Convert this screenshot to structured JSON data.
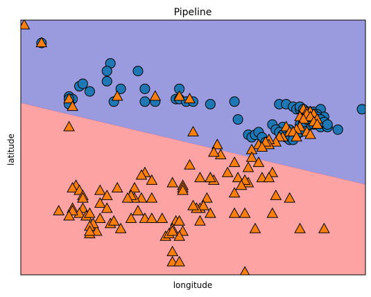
{
  "chart_data": {
    "type": "scatter",
    "title": "Pipeline",
    "xlabel": "longitude",
    "ylabel": "latitude",
    "xlim": [
      0,
      100
    ],
    "ylim": [
      0,
      100
    ],
    "ticks": "none",
    "grid": false,
    "colors": {
      "region_upper": "#9a9ade",
      "region_lower": "#fda3a3",
      "class_circle": "#1f77b4",
      "class_triangle": "#ff7f0e",
      "marker_edge": "#000000"
    },
    "decision_boundary": {
      "points": [
        [
          0,
          67.5
        ],
        [
          100,
          35.5
        ]
      ]
    },
    "series": [
      {
        "marker": "circle",
        "points": [
          [
            6,
            91
          ],
          [
            26,
            83
          ],
          [
            25,
            80
          ],
          [
            34,
            80
          ],
          [
            25,
            76
          ],
          [
            17,
            74
          ],
          [
            36,
            73
          ],
          [
            18,
            75
          ],
          [
            20,
            72
          ],
          [
            29,
            73
          ],
          [
            46,
            73
          ],
          [
            14,
            70
          ],
          [
            15,
            69
          ],
          [
            14,
            69
          ],
          [
            14,
            67
          ],
          [
            27,
            68
          ],
          [
            36,
            68
          ],
          [
            39,
            68
          ],
          [
            45,
            69
          ],
          [
            46,
            69
          ],
          [
            48,
            68
          ],
          [
            50,
            68
          ],
          [
            55,
            67
          ],
          [
            62,
            68
          ],
          [
            75,
            67
          ],
          [
            77,
            67
          ],
          [
            79,
            66
          ],
          [
            80,
            65
          ],
          [
            81,
            65
          ],
          [
            81,
            66
          ],
          [
            82,
            65
          ],
          [
            83,
            64
          ],
          [
            84,
            64
          ],
          [
            85,
            64
          ],
          [
            87,
            65
          ],
          [
            86,
            63
          ],
          [
            88,
            62
          ],
          [
            99,
            65
          ],
          [
            92,
            57
          ],
          [
            76,
            58
          ],
          [
            78,
            57
          ],
          [
            77,
            56
          ],
          [
            78,
            55
          ],
          [
            79,
            54
          ],
          [
            80,
            55
          ],
          [
            81,
            56
          ],
          [
            82,
            57
          ],
          [
            83,
            58
          ],
          [
            84,
            59
          ],
          [
            85,
            59
          ],
          [
            86,
            59
          ],
          [
            87,
            58
          ],
          [
            89,
            58
          ],
          [
            81,
            59
          ],
          [
            82,
            60
          ],
          [
            83,
            61
          ],
          [
            84,
            62
          ],
          [
            85,
            63
          ],
          [
            86,
            62
          ],
          [
            86,
            61
          ],
          [
            87,
            61
          ],
          [
            88,
            60
          ],
          [
            89,
            59
          ],
          [
            63,
            61
          ],
          [
            73,
            59
          ],
          [
            74,
            57
          ],
          [
            75,
            56
          ],
          [
            76,
            55
          ],
          [
            77,
            54
          ],
          [
            78,
            53
          ],
          [
            79,
            53
          ],
          [
            66,
            55
          ],
          [
            67,
            54
          ],
          [
            68,
            55
          ],
          [
            69,
            56
          ],
          [
            70,
            54
          ],
          [
            71,
            52
          ]
        ]
      },
      {
        "marker": "triangle",
        "points": [
          [
            1,
            98
          ],
          [
            6,
            91
          ],
          [
            28,
            70
          ],
          [
            39,
            70
          ],
          [
            46,
            70
          ],
          [
            14,
            69
          ],
          [
            49,
            69
          ],
          [
            15,
            66
          ],
          [
            82,
            65
          ],
          [
            83,
            64
          ],
          [
            84,
            64
          ],
          [
            85,
            63
          ],
          [
            83,
            63
          ],
          [
            84,
            62
          ],
          [
            81,
            62
          ],
          [
            82,
            61
          ],
          [
            86,
            61
          ],
          [
            85,
            60
          ],
          [
            86,
            59
          ],
          [
            81,
            58
          ],
          [
            77,
            58
          ],
          [
            80,
            57
          ],
          [
            14,
            58
          ],
          [
            50,
            56
          ],
          [
            83,
            56
          ],
          [
            84,
            55
          ],
          [
            78,
            56
          ],
          [
            79,
            56
          ],
          [
            76,
            54
          ],
          [
            80,
            54
          ],
          [
            75,
            54
          ],
          [
            74,
            52
          ],
          [
            72,
            53
          ],
          [
            72,
            51
          ],
          [
            71,
            52
          ],
          [
            69,
            51
          ],
          [
            70,
            50
          ],
          [
            57,
            51
          ],
          [
            67,
            49
          ],
          [
            58,
            47
          ],
          [
            56,
            48
          ],
          [
            67,
            46
          ],
          [
            69,
            44
          ],
          [
            62,
            44
          ],
          [
            49,
            43
          ],
          [
            66,
            42
          ],
          [
            60,
            40
          ],
          [
            73,
            40
          ],
          [
            70,
            38
          ],
          [
            72,
            38
          ],
          [
            36,
            40
          ],
          [
            35,
            39
          ],
          [
            16,
            35
          ],
          [
            15,
            34
          ],
          [
            17,
            33
          ],
          [
            55,
            38
          ],
          [
            18,
            31
          ],
          [
            33,
            34
          ],
          [
            23,
            33
          ],
          [
            47,
            35
          ],
          [
            44,
            36
          ],
          [
            38,
            37
          ],
          [
            66,
            36
          ],
          [
            63,
            38
          ],
          [
            65,
            37
          ],
          [
            56,
            37
          ],
          [
            55,
            38
          ],
          [
            52,
            38
          ],
          [
            47,
            34
          ],
          [
            47,
            33
          ],
          [
            54,
            30
          ],
          [
            38,
            30
          ],
          [
            35,
            30
          ],
          [
            23,
            28
          ],
          [
            18,
            26
          ],
          [
            15,
            26
          ],
          [
            11,
            25
          ],
          [
            25,
            26
          ],
          [
            23,
            22
          ],
          [
            17,
            24
          ],
          [
            19,
            23
          ],
          [
            62,
            24
          ],
          [
            65,
            24
          ],
          [
            19,
            23
          ],
          [
            45,
            21
          ],
          [
            46,
            21
          ],
          [
            26,
            20
          ],
          [
            29,
            18
          ],
          [
            27,
            21
          ],
          [
            22,
            17
          ],
          [
            52,
            21
          ],
          [
            41,
            22
          ],
          [
            21,
            20
          ],
          [
            20,
            19
          ],
          [
            20,
            16
          ],
          [
            44,
            18
          ],
          [
            20,
            17
          ],
          [
            20,
            24
          ],
          [
            68,
            18
          ],
          [
            81,
            18
          ],
          [
            88,
            18
          ],
          [
            47,
            17
          ],
          [
            46,
            15
          ],
          [
            42,
            15
          ],
          [
            43,
            16
          ],
          [
            44,
            17
          ],
          [
            65,
            1
          ],
          [
            44,
            5
          ],
          [
            46,
            5
          ],
          [
            44,
            9
          ],
          [
            18,
            30
          ],
          [
            33,
            30
          ],
          [
            78,
            30
          ],
          [
            73,
            24
          ],
          [
            55,
            24
          ],
          [
            15,
            25
          ],
          [
            14,
            23
          ],
          [
            52,
            26
          ],
          [
            53,
            27
          ],
          [
            74,
            31
          ],
          [
            51,
            26
          ],
          [
            50,
            27
          ],
          [
            25,
            31
          ],
          [
            32,
            22
          ],
          [
            34,
            25
          ],
          [
            36,
            22
          ],
          [
            38,
            22
          ],
          [
            32,
            31
          ],
          [
            31,
            30
          ],
          [
            28,
            34
          ],
          [
            64,
            35
          ],
          [
            62,
            32
          ]
        ]
      }
    ]
  }
}
